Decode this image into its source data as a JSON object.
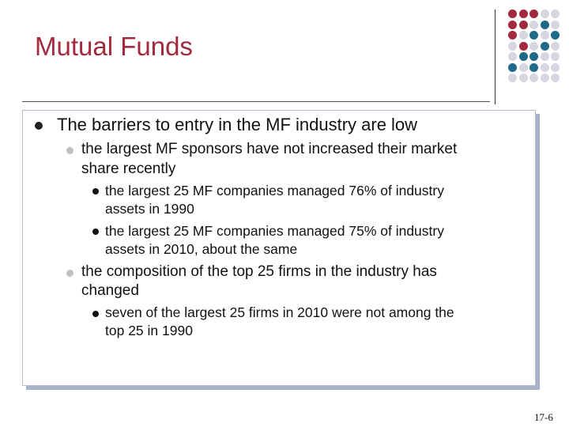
{
  "slide": {
    "title": "Mutual Funds",
    "page_number": "17-6"
  },
  "colors": {
    "title": "#a3293e",
    "bullet_lvl1": "#222222",
    "bullet_lvl2": "#c0c0c0",
    "bullet_lvl3": "#111111",
    "dot_red": "#a3293e",
    "dot_blue": "#1e6a8a",
    "dot_gray": "#d6d6e0"
  },
  "decoration": {
    "dot_pattern": [
      [
        "red",
        "red",
        "red",
        "gray",
        "gray"
      ],
      [
        "red",
        "red",
        "gray",
        "blue",
        "gray"
      ],
      [
        "red",
        "gray",
        "blue",
        "gray",
        "blue"
      ],
      [
        "gray",
        "red",
        "gray",
        "blue",
        "gray"
      ],
      [
        "gray",
        "blue",
        "blue",
        "gray",
        "gray"
      ],
      [
        "blue",
        "gray",
        "blue",
        "gray",
        "gray"
      ],
      [
        "gray",
        "gray",
        "gray",
        "gray",
        "gray"
      ]
    ]
  },
  "content": {
    "main_bullet": "The barriers to entry in the MF industry are low",
    "sub1": {
      "line1": "the largest MF sponsors have not increased their market",
      "line2": "share recently",
      "items": [
        {
          "line1": "the largest 25 MF companies managed 76% of industry",
          "line2": "assets in 1990"
        },
        {
          "line1": "the largest 25 MF companies managed 75% of industry",
          "line2": "assets in 2010, about the same"
        }
      ]
    },
    "sub2": {
      "line1": "the composition of the top 25 firms in the industry has",
      "line2": "changed",
      "items": [
        {
          "line1": "seven of the largest 25 firms in 2010 were not among the",
          "line2": "top 25 in 1990"
        }
      ]
    }
  }
}
